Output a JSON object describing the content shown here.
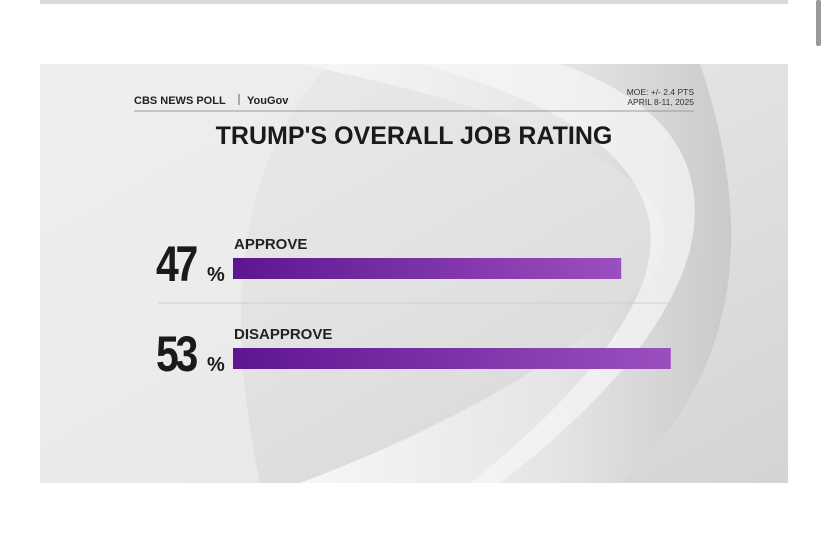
{
  "chart_data": {
    "type": "bar",
    "orientation": "horizontal",
    "brand": "CBS NEWS POLL",
    "partner": "YouGov",
    "moe": "MOE: +/- 2.4 PTS",
    "dates": "APRIL 8-11, 2025",
    "title": "TRUMP'S OVERALL JOB RATING",
    "categories": [
      "APPROVE",
      "DISAPPROVE"
    ],
    "values": [
      47,
      53
    ],
    "value_suffix": "%",
    "color": "#7b2fa8"
  }
}
